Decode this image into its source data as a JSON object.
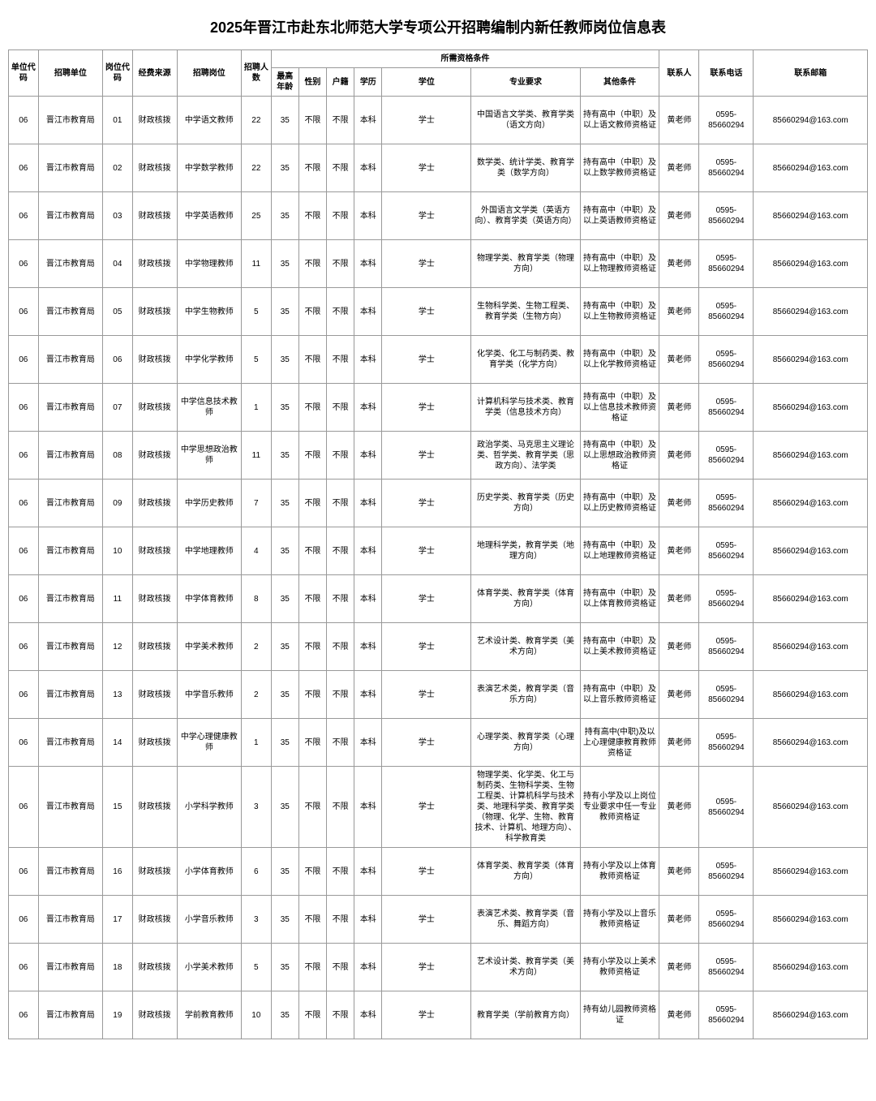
{
  "title": "2025年晋江市赴东北师范大学专项公开招聘编制内新任教师岗位信息表",
  "headers": {
    "unitCode": "单位代码",
    "unit": "招聘单位",
    "posCode": "岗位代码",
    "fund": "经费来源",
    "posName": "招聘岗位",
    "count": "招聘人数",
    "qualGroup": "所需资格条件",
    "age": "最高年龄",
    "gender": "性别",
    "huji": "户籍",
    "edu": "学历",
    "degree": "学位",
    "major": "专业要求",
    "other": "其他条件",
    "contact": "联系人",
    "phone": "联系电话",
    "email": "联系邮箱"
  },
  "rows": [
    {
      "unitCode": "06",
      "unit": "晋江市教育局",
      "posCode": "01",
      "fund": "财政核拨",
      "posName": "中学语文教师",
      "count": "22",
      "age": "35",
      "gender": "不限",
      "huji": "不限",
      "edu": "本科",
      "degree": "学士",
      "major": "中国语言文学类、教育学类（语文方向）",
      "other": "持有高中（中职）及以上语文教师资格证",
      "contact": "黄老师",
      "phone": "0595-85660294",
      "email": "85660294@163.com"
    },
    {
      "unitCode": "06",
      "unit": "晋江市教育局",
      "posCode": "02",
      "fund": "财政核拨",
      "posName": "中学数学教师",
      "count": "22",
      "age": "35",
      "gender": "不限",
      "huji": "不限",
      "edu": "本科",
      "degree": "学士",
      "major": "数学类、统计学类、教育学类（数学方向）",
      "other": "持有高中（中职）及以上数学教师资格证",
      "contact": "黄老师",
      "phone": "0595-85660294",
      "email": "85660294@163.com"
    },
    {
      "unitCode": "06",
      "unit": "晋江市教育局",
      "posCode": "03",
      "fund": "财政核拨",
      "posName": "中学英语教师",
      "count": "25",
      "age": "35",
      "gender": "不限",
      "huji": "不限",
      "edu": "本科",
      "degree": "学士",
      "major": "外国语言文学类（英语方向）、教育学类（英语方向）",
      "other": "持有高中（中职）及以上英语教师资格证",
      "contact": "黄老师",
      "phone": "0595-85660294",
      "email": "85660294@163.com"
    },
    {
      "unitCode": "06",
      "unit": "晋江市教育局",
      "posCode": "04",
      "fund": "财政核拨",
      "posName": "中学物理教师",
      "count": "11",
      "age": "35",
      "gender": "不限",
      "huji": "不限",
      "edu": "本科",
      "degree": "学士",
      "major": "物理学类、教育学类（物理方向）",
      "other": "持有高中（中职）及以上物理教师资格证",
      "contact": "黄老师",
      "phone": "0595-85660294",
      "email": "85660294@163.com"
    },
    {
      "unitCode": "06",
      "unit": "晋江市教育局",
      "posCode": "05",
      "fund": "财政核拨",
      "posName": "中学生物教师",
      "count": "5",
      "age": "35",
      "gender": "不限",
      "huji": "不限",
      "edu": "本科",
      "degree": "学士",
      "major": "生物科学类、生物工程类、教育学类（生物方向）",
      "other": "持有高中（中职）及以上生物教师资格证",
      "contact": "黄老师",
      "phone": "0595-85660294",
      "email": "85660294@163.com"
    },
    {
      "unitCode": "06",
      "unit": "晋江市教育局",
      "posCode": "06",
      "fund": "财政核拨",
      "posName": "中学化学教师",
      "count": "5",
      "age": "35",
      "gender": "不限",
      "huji": "不限",
      "edu": "本科",
      "degree": "学士",
      "major": "化学类、化工与制药类、教育学类（化学方向）",
      "other": "持有高中（中职）及以上化学教师资格证",
      "contact": "黄老师",
      "phone": "0595-85660294",
      "email": "85660294@163.com"
    },
    {
      "unitCode": "06",
      "unit": "晋江市教育局",
      "posCode": "07",
      "fund": "财政核拨",
      "posName": "中学信息技术教师",
      "count": "1",
      "age": "35",
      "gender": "不限",
      "huji": "不限",
      "edu": "本科",
      "degree": "学士",
      "major": "计算机科学与技术类、教育学类（信息技术方向）",
      "other": "持有高中（中职）及以上信息技术教师资格证",
      "contact": "黄老师",
      "phone": "0595-85660294",
      "email": "85660294@163.com"
    },
    {
      "unitCode": "06",
      "unit": "晋江市教育局",
      "posCode": "08",
      "fund": "财政核拨",
      "posName": "中学思想政治教师",
      "count": "11",
      "age": "35",
      "gender": "不限",
      "huji": "不限",
      "edu": "本科",
      "degree": "学士",
      "major": "政治学类、马克思主义理论类、哲学类、教育学类（思政方向）、法学类",
      "other": "持有高中（中职）及以上思想政治教师资格证",
      "contact": "黄老师",
      "phone": "0595-85660294",
      "email": "85660294@163.com"
    },
    {
      "unitCode": "06",
      "unit": "晋江市教育局",
      "posCode": "09",
      "fund": "财政核拨",
      "posName": "中学历史教师",
      "count": "7",
      "age": "35",
      "gender": "不限",
      "huji": "不限",
      "edu": "本科",
      "degree": "学士",
      "major": "历史学类、教育学类（历史方向）",
      "other": "持有高中（中职）及以上历史教师资格证",
      "contact": "黄老师",
      "phone": "0595-85660294",
      "email": "85660294@163.com"
    },
    {
      "unitCode": "06",
      "unit": "晋江市教育局",
      "posCode": "10",
      "fund": "财政核拨",
      "posName": "中学地理教师",
      "count": "4",
      "age": "35",
      "gender": "不限",
      "huji": "不限",
      "edu": "本科",
      "degree": "学士",
      "major": "地理科学类，教育学类（地理方向）",
      "other": "持有高中（中职）及以上地理教师资格证",
      "contact": "黄老师",
      "phone": "0595-85660294",
      "email": "85660294@163.com"
    },
    {
      "unitCode": "06",
      "unit": "晋江市教育局",
      "posCode": "11",
      "fund": "财政核拨",
      "posName": "中学体育教师",
      "count": "8",
      "age": "35",
      "gender": "不限",
      "huji": "不限",
      "edu": "本科",
      "degree": "学士",
      "major": "体育学类、教育学类（体育方向）",
      "other": "持有高中（中职）及以上体育教师资格证",
      "contact": "黄老师",
      "phone": "0595-85660294",
      "email": "85660294@163.com"
    },
    {
      "unitCode": "06",
      "unit": "晋江市教育局",
      "posCode": "12",
      "fund": "财政核拨",
      "posName": "中学美术教师",
      "count": "2",
      "age": "35",
      "gender": "不限",
      "huji": "不限",
      "edu": "本科",
      "degree": "学士",
      "major": "艺术设计类、教育学类（美术方向）",
      "other": "持有高中（中职）及以上美术教师资格证",
      "contact": "黄老师",
      "phone": "0595-85660294",
      "email": "85660294@163.com"
    },
    {
      "unitCode": "06",
      "unit": "晋江市教育局",
      "posCode": "13",
      "fund": "财政核拨",
      "posName": "中学音乐教师",
      "count": "2",
      "age": "35",
      "gender": "不限",
      "huji": "不限",
      "edu": "本科",
      "degree": "学士",
      "major": "表演艺术类，教育学类（音乐方向）",
      "other": "持有高中（中职）及以上音乐教师资格证",
      "contact": "黄老师",
      "phone": "0595-85660294",
      "email": "85660294@163.com"
    },
    {
      "unitCode": "06",
      "unit": "晋江市教育局",
      "posCode": "14",
      "fund": "财政核拨",
      "posName": "中学心理健康教师",
      "count": "1",
      "age": "35",
      "gender": "不限",
      "huji": "不限",
      "edu": "本科",
      "degree": "学士",
      "major": "心理学类、教育学类（心理方向）",
      "other": "持有高中(中职)及以上心理健康教育教师资格证",
      "contact": "黄老师",
      "phone": "0595-85660294",
      "email": "85660294@163.com"
    },
    {
      "unitCode": "06",
      "unit": "晋江市教育局",
      "posCode": "15",
      "fund": "财政核拨",
      "posName": "小学科学教师",
      "count": "3",
      "age": "35",
      "gender": "不限",
      "huji": "不限",
      "edu": "本科",
      "degree": "学士",
      "major": "物理学类、化学类、化工与制药类、生物科学类、生物工程类、计算机科学与技术类、地理科学类、教育学类（物理、化学、生物、教育技术、计算机、地理方向）、科学教育类",
      "other": "持有小学及以上岗位专业要求中任一专业教师资格证",
      "contact": "黄老师",
      "phone": "0595-85660294",
      "email": "85660294@163.com"
    },
    {
      "unitCode": "06",
      "unit": "晋江市教育局",
      "posCode": "16",
      "fund": "财政核拨",
      "posName": "小学体育教师",
      "count": "6",
      "age": "35",
      "gender": "不限",
      "huji": "不限",
      "edu": "本科",
      "degree": "学士",
      "major": "体育学类、教育学类（体育方向）",
      "other": "持有小学及以上体育教师资格证",
      "contact": "黄老师",
      "phone": "0595-85660294",
      "email": "85660294@163.com"
    },
    {
      "unitCode": "06",
      "unit": "晋江市教育局",
      "posCode": "17",
      "fund": "财政核拨",
      "posName": "小学音乐教师",
      "count": "3",
      "age": "35",
      "gender": "不限",
      "huji": "不限",
      "edu": "本科",
      "degree": "学士",
      "major": "表演艺术类、教育学类（音乐、舞蹈方向）",
      "other": "持有小学及以上音乐教师资格证",
      "contact": "黄老师",
      "phone": "0595-85660294",
      "email": "85660294@163.com"
    },
    {
      "unitCode": "06",
      "unit": "晋江市教育局",
      "posCode": "18",
      "fund": "财政核拨",
      "posName": "小学美术教师",
      "count": "5",
      "age": "35",
      "gender": "不限",
      "huji": "不限",
      "edu": "本科",
      "degree": "学士",
      "major": "艺术设计类、教育学类（美术方向）",
      "other": "持有小学及以上美术教师资格证",
      "contact": "黄老师",
      "phone": "0595-85660294",
      "email": "85660294@163.com"
    },
    {
      "unitCode": "06",
      "unit": "晋江市教育局",
      "posCode": "19",
      "fund": "财政核拨",
      "posName": "学前教育教师",
      "count": "10",
      "age": "35",
      "gender": "不限",
      "huji": "不限",
      "edu": "本科",
      "degree": "学士",
      "major": "教育学类（学前教育方向）",
      "other": "持有幼儿园教师资格证",
      "contact": "黄老师",
      "phone": "0595-85660294",
      "email": "85660294@163.com"
    }
  ]
}
